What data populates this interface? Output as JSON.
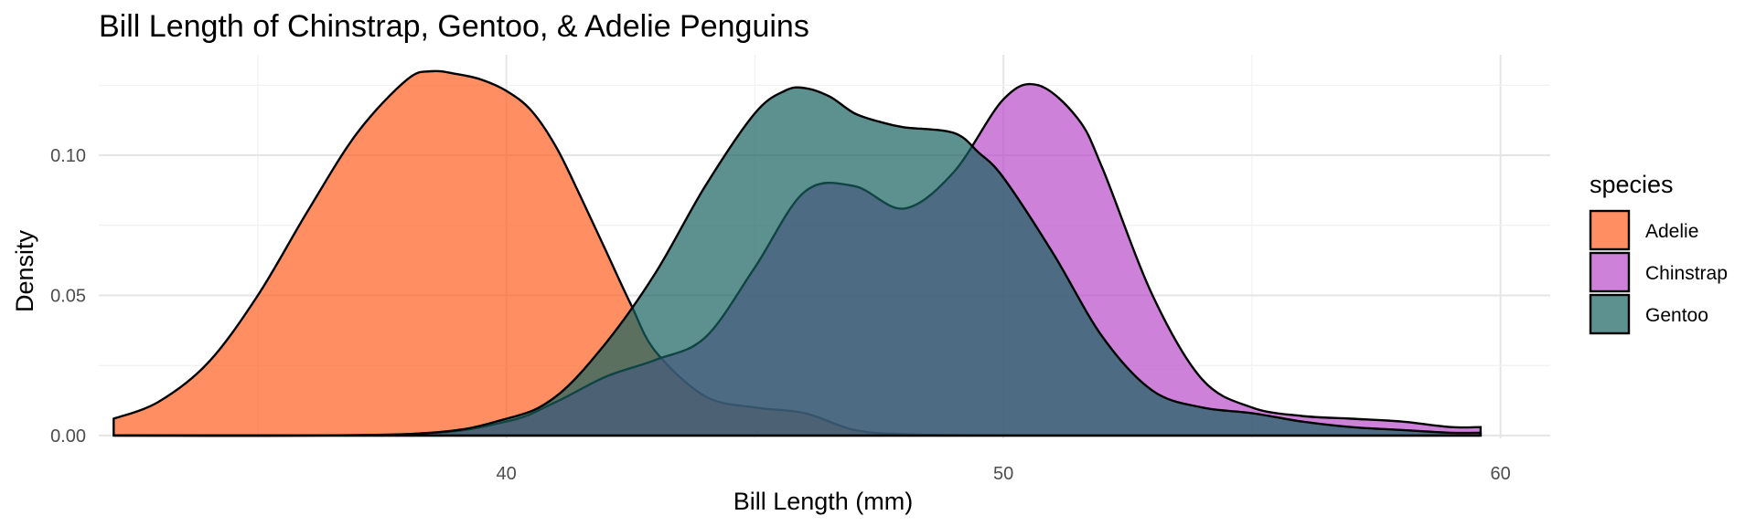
{
  "chart_data": {
    "type": "area",
    "title": "Bill Length of Chinstrap, Gentoo, & Adelie Penguins",
    "xlabel": "Bill Length (mm)",
    "ylabel": "Density",
    "xlim": [
      31.8,
      61.0
    ],
    "ylim": [
      -0.001,
      0.13
    ],
    "x_ticks": [
      40,
      50,
      60
    ],
    "x_tick_labels": [
      "40",
      "50",
      "60"
    ],
    "y_ticks": [
      0.0,
      0.05,
      0.1
    ],
    "y_tick_labels": [
      "0.00",
      "0.05",
      "0.10"
    ],
    "grid": true,
    "legend": {
      "title": "species",
      "position": "right"
    },
    "series": [
      {
        "name": "Adelie",
        "color": "#FF5F1F",
        "x": [
          32.1,
          33.0,
          34.0,
          35.0,
          36.0,
          37.0,
          38.0,
          38.5,
          39.0,
          39.5,
          40.0,
          40.5,
          41.0,
          41.5,
          42.0,
          42.5,
          43.0,
          44.0,
          45.0,
          46.0,
          47.0,
          48.0,
          50.0,
          55.0,
          59.6
        ],
        "y": [
          0.006,
          0.012,
          0.026,
          0.05,
          0.08,
          0.108,
          0.127,
          0.13,
          0.129,
          0.127,
          0.123,
          0.116,
          0.103,
          0.085,
          0.066,
          0.047,
          0.03,
          0.014,
          0.01,
          0.008,
          0.002,
          0.0005,
          0.0,
          0.0,
          0.0
        ]
      },
      {
        "name": "Chinstrap",
        "color": "#B94BC7",
        "x": [
          32.1,
          38.0,
          40.0,
          41.0,
          42.0,
          43.0,
          44.0,
          45.0,
          46.0,
          47.0,
          48.0,
          49.0,
          50.0,
          50.7,
          51.5,
          52.0,
          53.0,
          54.0,
          55.0,
          56.0,
          57.0,
          58.0,
          59.0,
          59.6
        ],
        "y": [
          0.0,
          0.0005,
          0.005,
          0.012,
          0.021,
          0.027,
          0.035,
          0.06,
          0.087,
          0.089,
          0.081,
          0.094,
          0.12,
          0.125,
          0.113,
          0.095,
          0.05,
          0.02,
          0.01,
          0.007,
          0.006,
          0.005,
          0.003,
          0.003
        ]
      },
      {
        "name": "Gentoo",
        "color": "#17635F",
        "x": [
          32.1,
          38.0,
          40.0,
          41.0,
          42.0,
          43.0,
          44.0,
          45.0,
          45.6,
          46.0,
          46.5,
          47.0,
          47.5,
          48.0,
          49.0,
          49.5,
          50.0,
          51.0,
          52.0,
          53.0,
          54.0,
          55.0,
          56.0,
          57.0,
          58.0,
          59.0,
          59.6
        ],
        "y": [
          0.0,
          0.0005,
          0.006,
          0.014,
          0.033,
          0.058,
          0.089,
          0.115,
          0.123,
          0.124,
          0.121,
          0.115,
          0.112,
          0.11,
          0.108,
          0.101,
          0.092,
          0.065,
          0.035,
          0.016,
          0.01,
          0.008,
          0.005,
          0.003,
          0.002,
          0.001,
          0.001
        ]
      }
    ]
  }
}
